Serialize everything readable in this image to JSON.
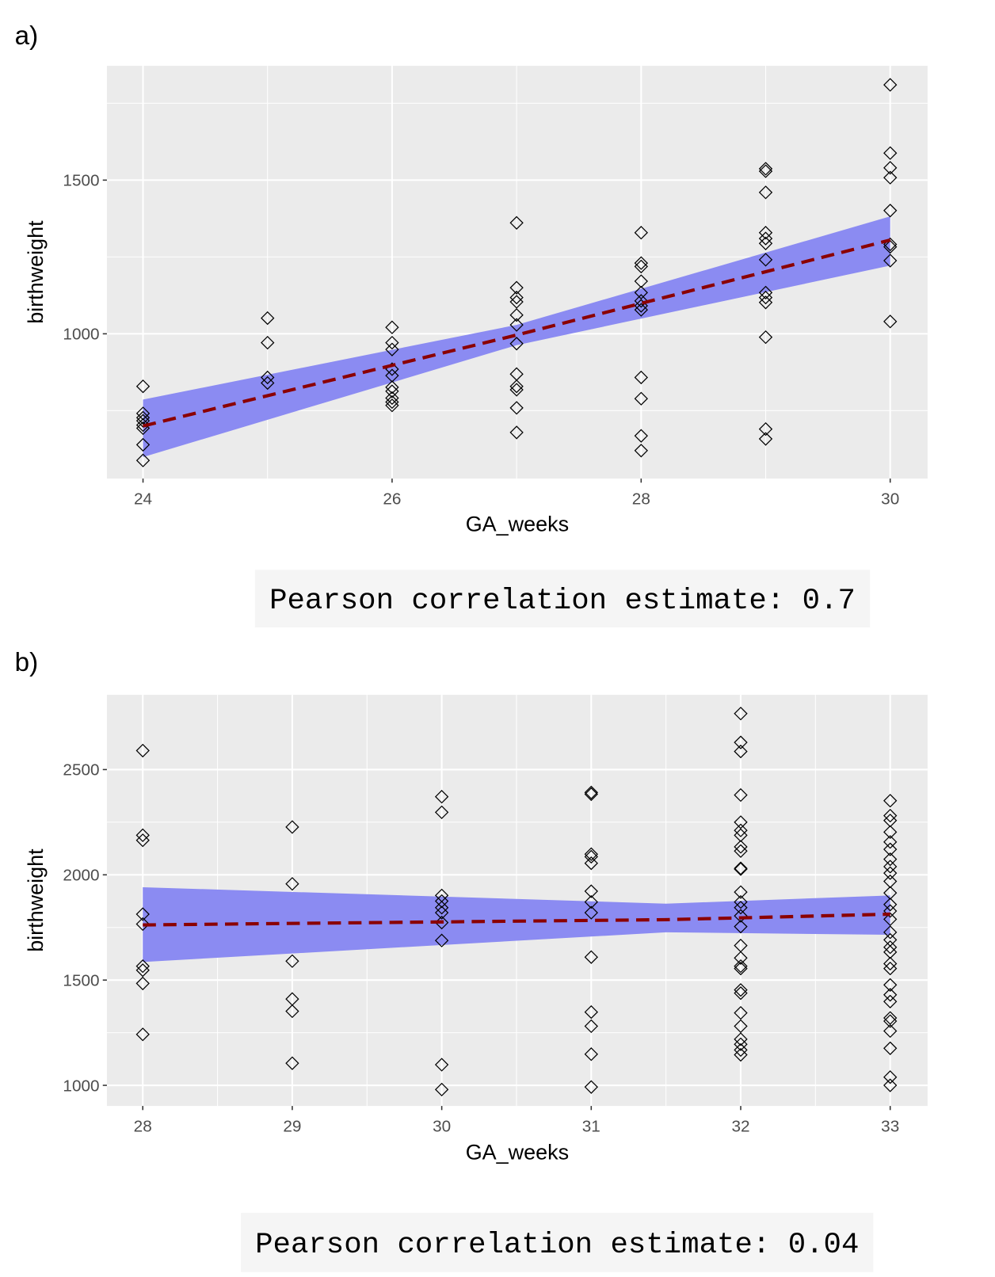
{
  "chart_data": [
    {
      "type": "scatter",
      "label": "a)",
      "annotation": "Pearson correlation estimate: 0.7",
      "x_label": "GA_weeks",
      "y_label": "birthweight",
      "xlim": [
        23.71,
        30.3
      ],
      "ylim": [
        529,
        1872
      ],
      "xticks": [
        24,
        26,
        28,
        30
      ],
      "yticks": [
        1000,
        1500
      ],
      "xminor": [
        25,
        27,
        29
      ],
      "yminor": [
        750,
        1250,
        1750
      ],
      "grid": true,
      "series": [
        {
          "color": "#000000",
          "x": [
            24,
            24,
            24,
            24,
            24,
            24,
            24,
            24,
            25,
            25,
            25,
            25,
            26,
            26,
            26,
            26,
            26,
            26,
            26,
            26,
            26,
            26,
            27,
            27,
            27,
            27,
            27,
            27,
            27,
            27,
            27,
            27,
            27,
            27,
            28,
            28,
            28,
            28,
            28,
            28,
            28,
            28,
            28,
            28,
            28,
            28,
            29,
            29,
            29,
            29,
            29,
            29,
            29,
            29,
            29,
            29,
            29,
            29,
            29,
            30,
            30,
            30,
            30,
            30,
            30,
            30,
            30,
            30
          ],
          "values": [
            829,
            741,
            727,
            717,
            703,
            693,
            639,
            588,
            1051,
            971,
            858,
            840,
            1021,
            971,
            949,
            885,
            864,
            826,
            813,
            791,
            778,
            767,
            1361,
            1150,
            1118,
            1104,
            1061,
            1029,
            968,
            869,
            829,
            818,
            759,
            679,
            1329,
            1230,
            1219,
            1171,
            1134,
            1107,
            1091,
            1078,
            858,
            789,
            668,
            620,
            1537,
            1529,
            1460,
            1329,
            1310,
            1294,
            1241,
            1134,
            1118,
            1102,
            989,
            690,
            658,
            1810,
            1588,
            1540,
            1508,
            1401,
            1291,
            1283,
            1238,
            1040
          ]
        }
      ],
      "fit": {
        "color": "#8b0000",
        "band_color": "#8b8bf2",
        "x": [
          24,
          27,
          30
        ],
        "values": [
          700,
          996,
          1305
        ],
        "lower": [
          599,
          963,
          1222
        ],
        "upper": [
          786,
          1029,
          1382
        ]
      }
    },
    {
      "type": "scatter",
      "label": "b)",
      "annotation": "Pearson correlation estimate: 0.04",
      "x_label": "GA_weeks",
      "y_label": "birthweight",
      "xlim": [
        27.76,
        33.25
      ],
      "ylim": [
        902,
        2855
      ],
      "xticks": [
        28,
        29,
        30,
        31,
        32,
        33
      ],
      "yticks": [
        1000,
        1500,
        2000,
        2500
      ],
      "xminor": [
        28.5,
        29.5,
        30.5,
        31.5,
        32.5
      ],
      "yminor": [
        1250,
        1750,
        2250
      ],
      "grid": true,
      "series": [
        {
          "color": "#000000",
          "x": [
            28,
            28,
            28,
            28,
            28,
            28,
            28,
            28,
            28,
            29,
            29,
            29,
            29,
            29,
            29,
            30,
            30,
            30,
            30,
            30,
            30,
            30,
            30,
            30,
            30,
            31,
            31,
            31,
            31,
            31,
            31,
            31,
            31,
            31,
            31,
            31,
            31,
            31,
            32,
            32,
            32,
            32,
            32,
            32,
            32,
            32,
            32,
            32,
            32,
            32,
            32,
            32,
            32,
            32,
            32,
            32,
            32,
            32,
            32,
            32,
            32,
            32,
            32,
            32,
            32,
            32,
            33,
            33,
            33,
            33,
            33,
            33,
            33,
            33,
            33,
            33,
            33,
            33,
            33,
            33,
            33,
            33,
            33,
            33,
            33,
            33,
            33,
            33,
            33,
            33,
            33,
            33,
            33,
            33,
            33
          ],
          "values": [
            2590,
            2188,
            2164,
            1813,
            1766,
            1566,
            1547,
            1484,
            1242,
            2227,
            1957,
            1590,
            1410,
            1352,
            1105,
            2371,
            2297,
            1902,
            1875,
            1844,
            1820,
            1773,
            1688,
            1098,
            980,
            2391,
            2383,
            2098,
            2086,
            2055,
            1922,
            1871,
            1820,
            1609,
            1348,
            1281,
            1148,
            992,
            2766,
            2629,
            2586,
            2379,
            2250,
            2211,
            2188,
            2133,
            2113,
            2031,
            2027,
            1918,
            1871,
            1844,
            1805,
            1754,
            1664,
            1605,
            1566,
            1555,
            1453,
            1438,
            1344,
            1281,
            1219,
            1195,
            1168,
            1145,
            2352,
            2281,
            2258,
            2203,
            2156,
            2121,
            2074,
            2039,
            2008,
            1969,
            1914,
            1859,
            1828,
            1789,
            1727,
            1691,
            1656,
            1633,
            1578,
            1555,
            1477,
            1430,
            1398,
            1320,
            1305,
            1258,
            1176,
            1039,
            1000
          ]
        }
      ],
      "fit": {
        "color": "#8b0000",
        "band_color": "#8b8bf2",
        "x": [
          28,
          31.5,
          33
        ],
        "values": [
          1762,
          1787,
          1813
        ],
        "lower": [
          1586,
          1727,
          1715
        ],
        "upper": [
          1941,
          1863,
          1902
        ]
      }
    }
  ]
}
